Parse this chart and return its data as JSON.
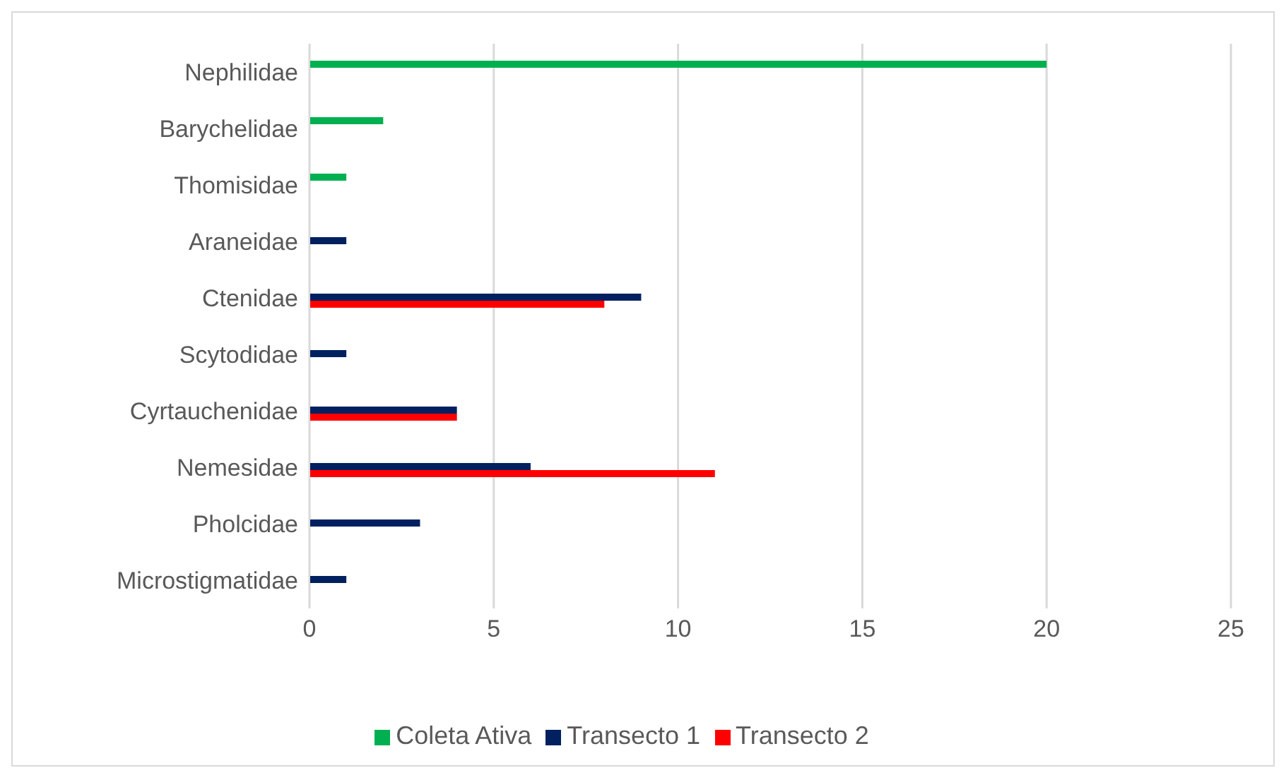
{
  "chart_data": {
    "type": "bar",
    "orientation": "horizontal",
    "categories": [
      "Nephilidae",
      "Barychelidae",
      "Thomisidae",
      "Araneidae",
      "Ctenidae",
      "Scytodidae",
      "Cyrtauchenidae",
      "Nemesidae",
      "Pholcidae",
      "Microstigmatidae"
    ],
    "series": [
      {
        "name": "Coleta Ativa",
        "color": "#00b050",
        "values": [
          20,
          2,
          1,
          null,
          null,
          null,
          null,
          null,
          null,
          null
        ]
      },
      {
        "name": "Transecto 1",
        "color": "#002060",
        "values": [
          null,
          null,
          null,
          1,
          9,
          1,
          4,
          6,
          3,
          1
        ]
      },
      {
        "name": "Transecto 2",
        "color": "#ff0000",
        "values": [
          null,
          null,
          null,
          null,
          8,
          null,
          4,
          11,
          null,
          null
        ]
      }
    ],
    "xlim": [
      0,
      25
    ],
    "xticks": [
      0,
      5,
      10,
      15,
      20,
      25
    ],
    "grid": "x",
    "legend": "bottom"
  }
}
